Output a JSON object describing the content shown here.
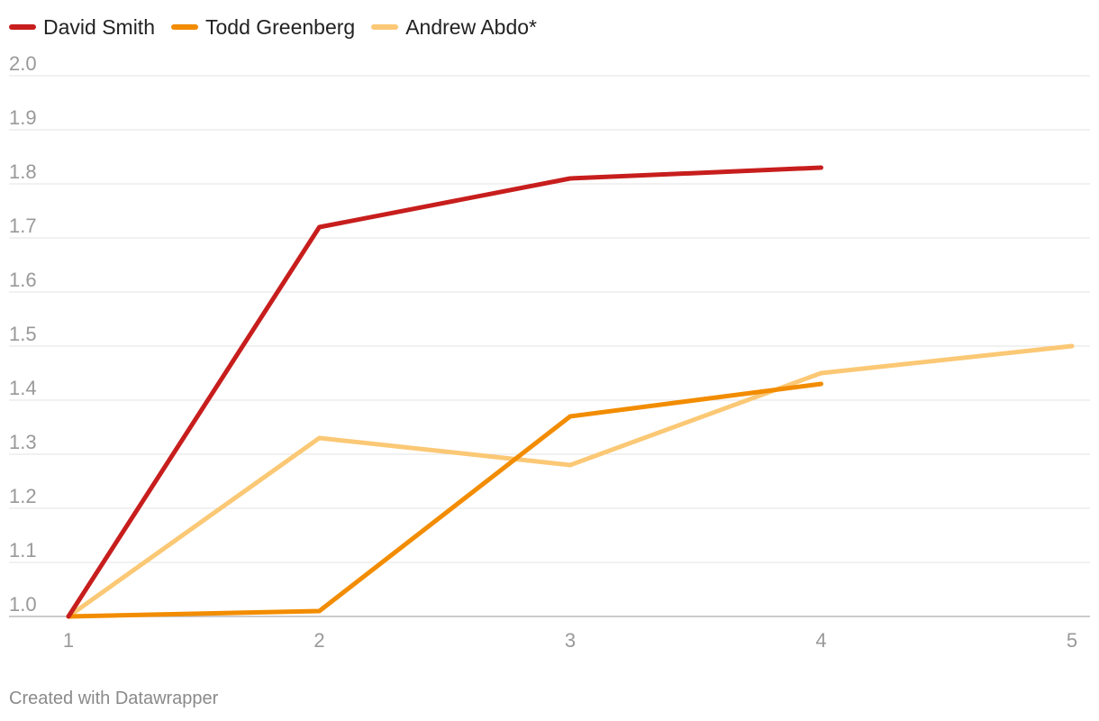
{
  "chart_data": {
    "type": "line",
    "x": [
      1,
      2,
      3,
      4,
      5
    ],
    "x_ticks": [
      "1",
      "2",
      "3",
      "4",
      "5"
    ],
    "y_ticks": [
      "1.0",
      "1.1",
      "1.2",
      "1.3",
      "1.4",
      "1.5",
      "1.6",
      "1.7",
      "1.8",
      "1.9",
      "2.0"
    ],
    "ylim": [
      1.0,
      2.0
    ],
    "xlim": [
      1,
      5
    ],
    "grid": "horizontal",
    "legend_position": "top-left",
    "series": [
      {
        "name": "David Smith",
        "color": "#c71e1d",
        "values": [
          1.0,
          1.72,
          1.81,
          1.83,
          null
        ]
      },
      {
        "name": "Todd Greenberg",
        "color": "#f28c00",
        "values": [
          1.0,
          1.01,
          1.37,
          1.43,
          null
        ]
      },
      {
        "name": "Andrew Abdo*",
        "color": "#fbc875",
        "values": [
          1.0,
          1.33,
          1.28,
          1.45,
          1.5
        ]
      }
    ]
  },
  "footer": {
    "credit": "Created with Datawrapper"
  }
}
